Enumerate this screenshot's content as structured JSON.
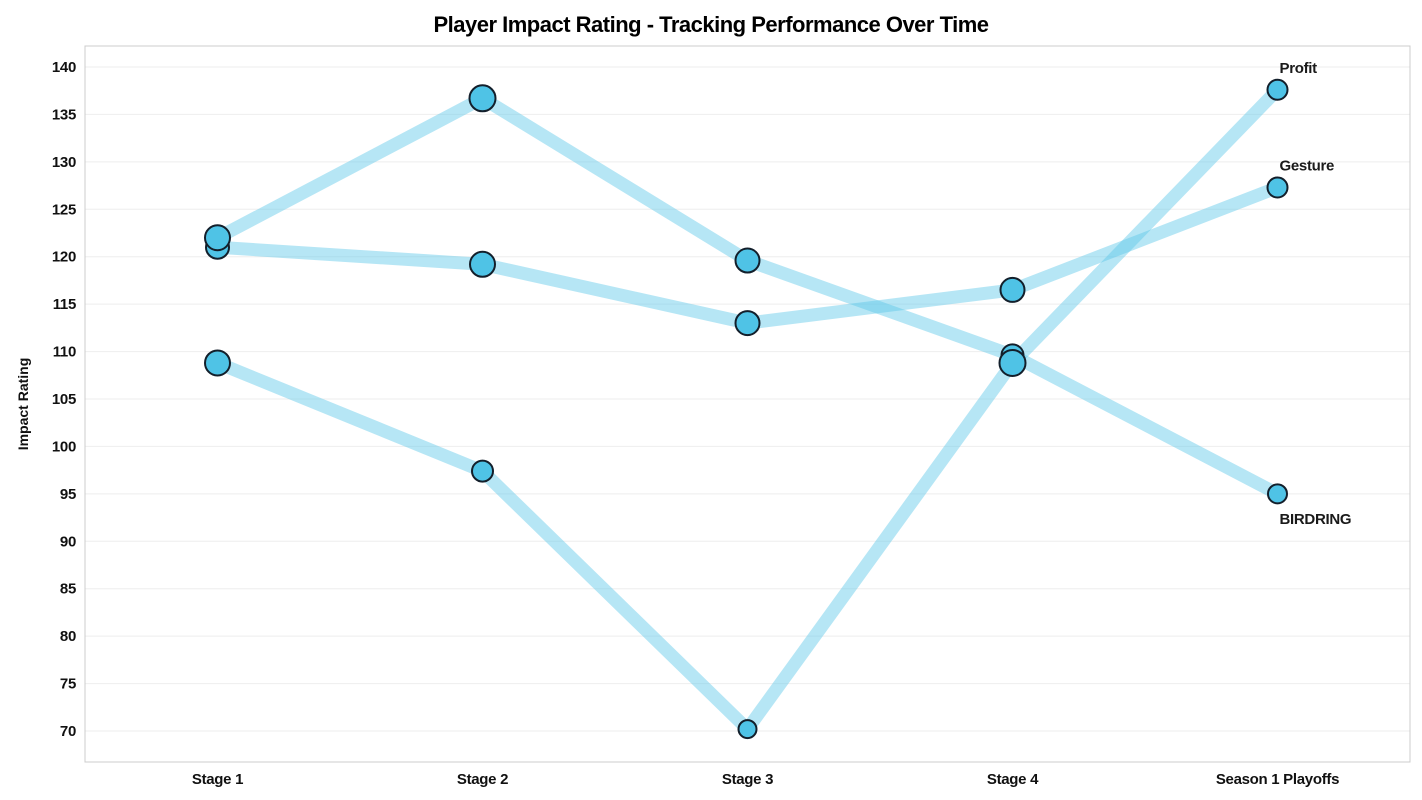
{
  "title": "Player Impact Rating - Tracking Performance Over Time",
  "chart_data": {
    "type": "line",
    "title": "Player Impact Rating - Tracking Performance Over Time",
    "xlabel": "",
    "ylabel": "Impact Rating",
    "categories": [
      "Stage 1",
      "Stage 2",
      "Stage 3",
      "Stage 4",
      "Season 1 Playoffs"
    ],
    "series": [
      {
        "name": "Gesture",
        "values": [
          121.0,
          119.2,
          113.0,
          116.5,
          127.3
        ],
        "marker_sizes": [
          11.5,
          12.5,
          12,
          12,
          10
        ],
        "label_offset": {
          "dx": 2,
          "dy": -17
        }
      },
      {
        "name": "BIRDRING",
        "values": [
          122.0,
          136.7,
          119.6,
          109.6,
          95.0
        ],
        "marker_sizes": [
          12.5,
          13,
          12,
          11,
          9.5
        ],
        "label_offset": {
          "dx": 2,
          "dy": 30
        }
      },
      {
        "name": "Profit",
        "values": [
          108.8,
          97.4,
          70.2,
          108.8,
          137.6
        ],
        "marker_sizes": [
          12.5,
          10.5,
          9,
          13,
          10
        ],
        "label_offset": {
          "dx": 2,
          "dy": -17
        }
      }
    ],
    "yticks": [
      140,
      135,
      130,
      125,
      120,
      115,
      110,
      105,
      100,
      95,
      90,
      85,
      80,
      75,
      70
    ],
    "ylim": [
      66.7,
      142.2
    ],
    "grid": true,
    "legend_position": "end-of-line-labels",
    "colors": {
      "line": "rgba(93,199,233,0.45)",
      "marker_fill": "#4fc3e6",
      "marker_stroke": "#131f2b",
      "gridline": "#eeeeee",
      "plot_border": "#cccccc",
      "text": "#111111",
      "background": "#ffffff"
    }
  }
}
